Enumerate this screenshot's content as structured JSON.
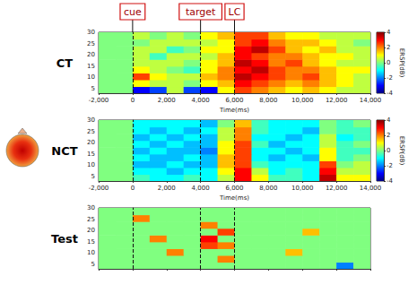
{
  "chart_data": [
    {
      "type": "heatmap",
      "title": "CT",
      "x_label": "Time(ms)",
      "xlim": [
        -2000,
        14000
      ],
      "xticks": [
        -2000,
        0,
        2000,
        4000,
        6000,
        8000,
        10000,
        12000,
        14000
      ],
      "ylim": [
        3,
        30
      ],
      "yticks": [
        5,
        10,
        15,
        20,
        25,
        30
      ],
      "x": [
        -1500,
        -500,
        500,
        1500,
        2500,
        3500,
        4500,
        5500,
        6500,
        7500,
        8500,
        9500,
        10500,
        11500,
        12500,
        13500
      ],
      "y": [
        4.5,
        7.5,
        10.5,
        13.5,
        16.5,
        19.5,
        22.5,
        25.5,
        28.5
      ],
      "z": [
        [
          0,
          0,
          -3,
          -2.5,
          0.5,
          -2.5,
          -3,
          1,
          2.5,
          2,
          1.5,
          1,
          1.5,
          1,
          0.5,
          0.5
        ],
        [
          0,
          0,
          1,
          0.5,
          0.5,
          0,
          1,
          1.5,
          3,
          2.5,
          2,
          1.5,
          2,
          1.5,
          1,
          0.5
        ],
        [
          0,
          0,
          2.5,
          1,
          0.5,
          0.5,
          1.5,
          2,
          3.5,
          3,
          2.5,
          2,
          2.5,
          1.5,
          1,
          0.5
        ],
        [
          0,
          0,
          1,
          0.5,
          0,
          -0.5,
          1,
          2,
          3,
          3.5,
          2.5,
          2,
          2,
          1.5,
          1,
          1
        ],
        [
          0,
          0,
          0.5,
          0.5,
          0.5,
          0,
          1,
          1.5,
          3.5,
          3,
          2,
          2.5,
          1.5,
          1,
          0.5,
          0.5
        ],
        [
          0,
          0,
          0.5,
          -0.5,
          0.5,
          0.5,
          0.5,
          1.5,
          3,
          2.5,
          2,
          2,
          1.5,
          1,
          1,
          0.5
        ],
        [
          0,
          0,
          0.5,
          0.5,
          -0.5,
          0,
          1,
          1,
          3,
          3.5,
          2.5,
          1.5,
          1,
          1.5,
          0.5,
          0.5
        ],
        [
          0,
          0,
          0,
          0.5,
          0.5,
          0.5,
          0.5,
          1,
          2.5,
          3,
          2,
          1.5,
          1.5,
          1,
          0.5,
          0
        ],
        [
          0,
          0,
          0.5,
          0,
          0.5,
          0,
          1,
          1.5,
          2.5,
          2.5,
          1.5,
          1,
          1,
          0.5,
          0.5,
          0.5
        ]
      ],
      "clim": [
        -4,
        4
      ],
      "colorbar_ticks": [
        -4,
        -2,
        0,
        2,
        4
      ],
      "colorbar_label": "ERSP(dB)"
    },
    {
      "type": "heatmap",
      "title": "NCT",
      "x_label": "Time(ms)",
      "xlim": [
        -2000,
        14000
      ],
      "xticks": [
        -2000,
        0,
        2000,
        4000,
        6000,
        8000,
        10000,
        12000,
        14000
      ],
      "ylim": [
        3,
        30
      ],
      "yticks": [
        5,
        10,
        15,
        20,
        25,
        30
      ],
      "x": [
        -1500,
        -500,
        500,
        1500,
        2500,
        3500,
        4500,
        5500,
        6500,
        7500,
        8500,
        9500,
        10500,
        11500,
        12500,
        13500
      ],
      "y": [
        4.5,
        7.5,
        10.5,
        13.5,
        16.5,
        19.5,
        22.5,
        25.5,
        28.5
      ],
      "z": [
        [
          0,
          0,
          -0.5,
          -1,
          -1,
          -0.5,
          -1,
          0.5,
          3,
          1,
          -0.5,
          -0.5,
          -1,
          3.5,
          1,
          1
        ],
        [
          0,
          0,
          -1,
          -1,
          -1.5,
          -1,
          -1,
          1,
          3,
          0.5,
          -1,
          -0.5,
          -1,
          3,
          0.5,
          0.5
        ],
        [
          0,
          0,
          -1.5,
          -1.5,
          -1,
          -1.5,
          -1.5,
          1.5,
          2.5,
          -0.5,
          -1,
          -1,
          -1,
          2.5,
          0,
          0.5
        ],
        [
          0,
          0,
          -1,
          -1.5,
          -1.5,
          -1,
          -1.5,
          1.5,
          2.5,
          -1,
          -1.5,
          -1,
          -1.5,
          1,
          -0.5,
          0
        ],
        [
          0,
          0,
          -1.5,
          -1,
          -1.5,
          -1.5,
          -2,
          1,
          2.5,
          -1,
          -1,
          -1.5,
          -1,
          1,
          -0.5,
          -0.5
        ],
        [
          0,
          0,
          -1,
          -1.5,
          -1,
          -1.5,
          -1.5,
          1,
          2.5,
          -0.5,
          -1.5,
          -1,
          -1,
          0.5,
          -0.5,
          0
        ],
        [
          0,
          0,
          -1.5,
          -1,
          -1.5,
          -1,
          -1.5,
          0.5,
          2,
          -1,
          -1,
          -1.5,
          -1,
          0.5,
          -1,
          -0.5
        ],
        [
          0,
          0,
          -1,
          -1.5,
          -1,
          -1.5,
          -1,
          0.5,
          2,
          -0.5,
          -1,
          -1,
          -1.5,
          0,
          -0.5,
          -0.5
        ],
        [
          0,
          0,
          -1,
          -1,
          -1,
          -1,
          -1.5,
          0,
          1.5,
          -0.5,
          -1,
          -1,
          -1,
          0,
          -0.5,
          0
        ]
      ],
      "clim": [
        -4,
        4
      ],
      "colorbar_ticks": [
        -4,
        -2,
        0,
        2,
        4
      ],
      "colorbar_label": "ERSP(dB)"
    },
    {
      "type": "heatmap",
      "title": "Test",
      "tick_labels": "y",
      "xlim": [
        -2000,
        14000
      ],
      "xticks": [
        -2000,
        0,
        2000,
        4000,
        6000,
        8000,
        10000,
        12000,
        14000
      ],
      "ylim": [
        3,
        30
      ],
      "yticks": [
        5,
        10,
        15,
        20,
        25,
        30
      ],
      "x": [
        -1500,
        -500,
        500,
        1500,
        2500,
        3500,
        4500,
        5500,
        6500,
        7500,
        8500,
        9500,
        10500,
        11500,
        12500,
        13500
      ],
      "y": [
        4.5,
        7.5,
        10.5,
        13.5,
        16.5,
        19.5,
        22.5,
        25.5,
        28.5
      ],
      "z": [
        [
          0,
          0,
          0,
          0,
          0,
          0,
          0,
          0,
          0,
          0,
          0,
          0,
          0,
          0,
          -2,
          0
        ],
        [
          0,
          0,
          0,
          0,
          0,
          0,
          0,
          2,
          0,
          0,
          0,
          0,
          0,
          0,
          0,
          0
        ],
        [
          0,
          0,
          0,
          0,
          2,
          0,
          0,
          0,
          0,
          0,
          0,
          1.5,
          0,
          0,
          0,
          0
        ],
        [
          0,
          0,
          0,
          0,
          0,
          0,
          2.5,
          2,
          0,
          0,
          0,
          0,
          0,
          0,
          0,
          0
        ],
        [
          0,
          0,
          0,
          2,
          0,
          0,
          3,
          0,
          0,
          0,
          0,
          0,
          0,
          0,
          0,
          0
        ],
        [
          0,
          0,
          0,
          0,
          0,
          0,
          0,
          2.5,
          0,
          0,
          0,
          0,
          1.5,
          0,
          0,
          0
        ],
        [
          0,
          0,
          0,
          0,
          0,
          0,
          2,
          0,
          0,
          0,
          0,
          0,
          0,
          0,
          0,
          0
        ],
        [
          0,
          0,
          2,
          0,
          0,
          0,
          0,
          0,
          0,
          0,
          0,
          0,
          0,
          0,
          0,
          0
        ],
        [
          0,
          0,
          0,
          0,
          0,
          0,
          0,
          0,
          0,
          0,
          0,
          0,
          0,
          0,
          0,
          0
        ]
      ],
      "clim": [
        -4,
        4
      ]
    }
  ],
  "annotations": [
    {
      "label": "cue",
      "x": 0
    },
    {
      "label": "target",
      "x": 4000
    },
    {
      "label": "LC",
      "x": 6000
    }
  ]
}
